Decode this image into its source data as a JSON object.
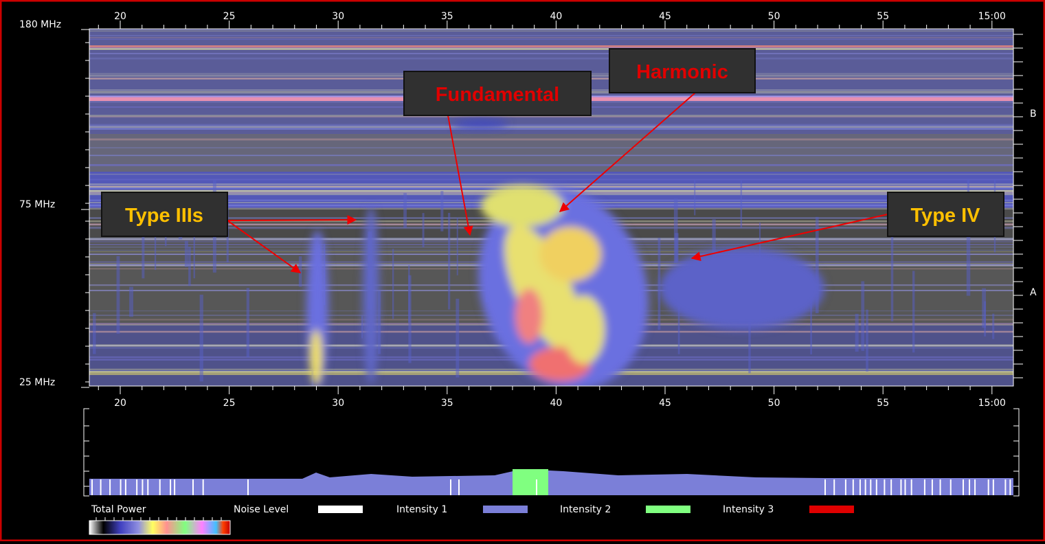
{
  "top_axis": {
    "ticks": [
      "20",
      "25",
      "30",
      "35",
      "40",
      "45",
      "50",
      "55",
      "15:00"
    ]
  },
  "bottom_axis": {
    "ticks": [
      "20",
      "25",
      "30",
      "35",
      "40",
      "45",
      "50",
      "55",
      "15:00"
    ]
  },
  "left_axis": {
    "labels": [
      "180 MHz",
      "75 MHz",
      "25 MHz"
    ]
  },
  "right_axis": {
    "labels": [
      "B",
      "A"
    ]
  },
  "annotations": {
    "harmonic": "Harmonic",
    "fundamental": "Fundamental",
    "type_iiis": "Type IIIs",
    "type_iv": "Type IV"
  },
  "legend": {
    "title": "Total Power",
    "items": [
      "Noise Level",
      "Intensity 1",
      "Intensity 2",
      "Intensity 3"
    ]
  }
}
